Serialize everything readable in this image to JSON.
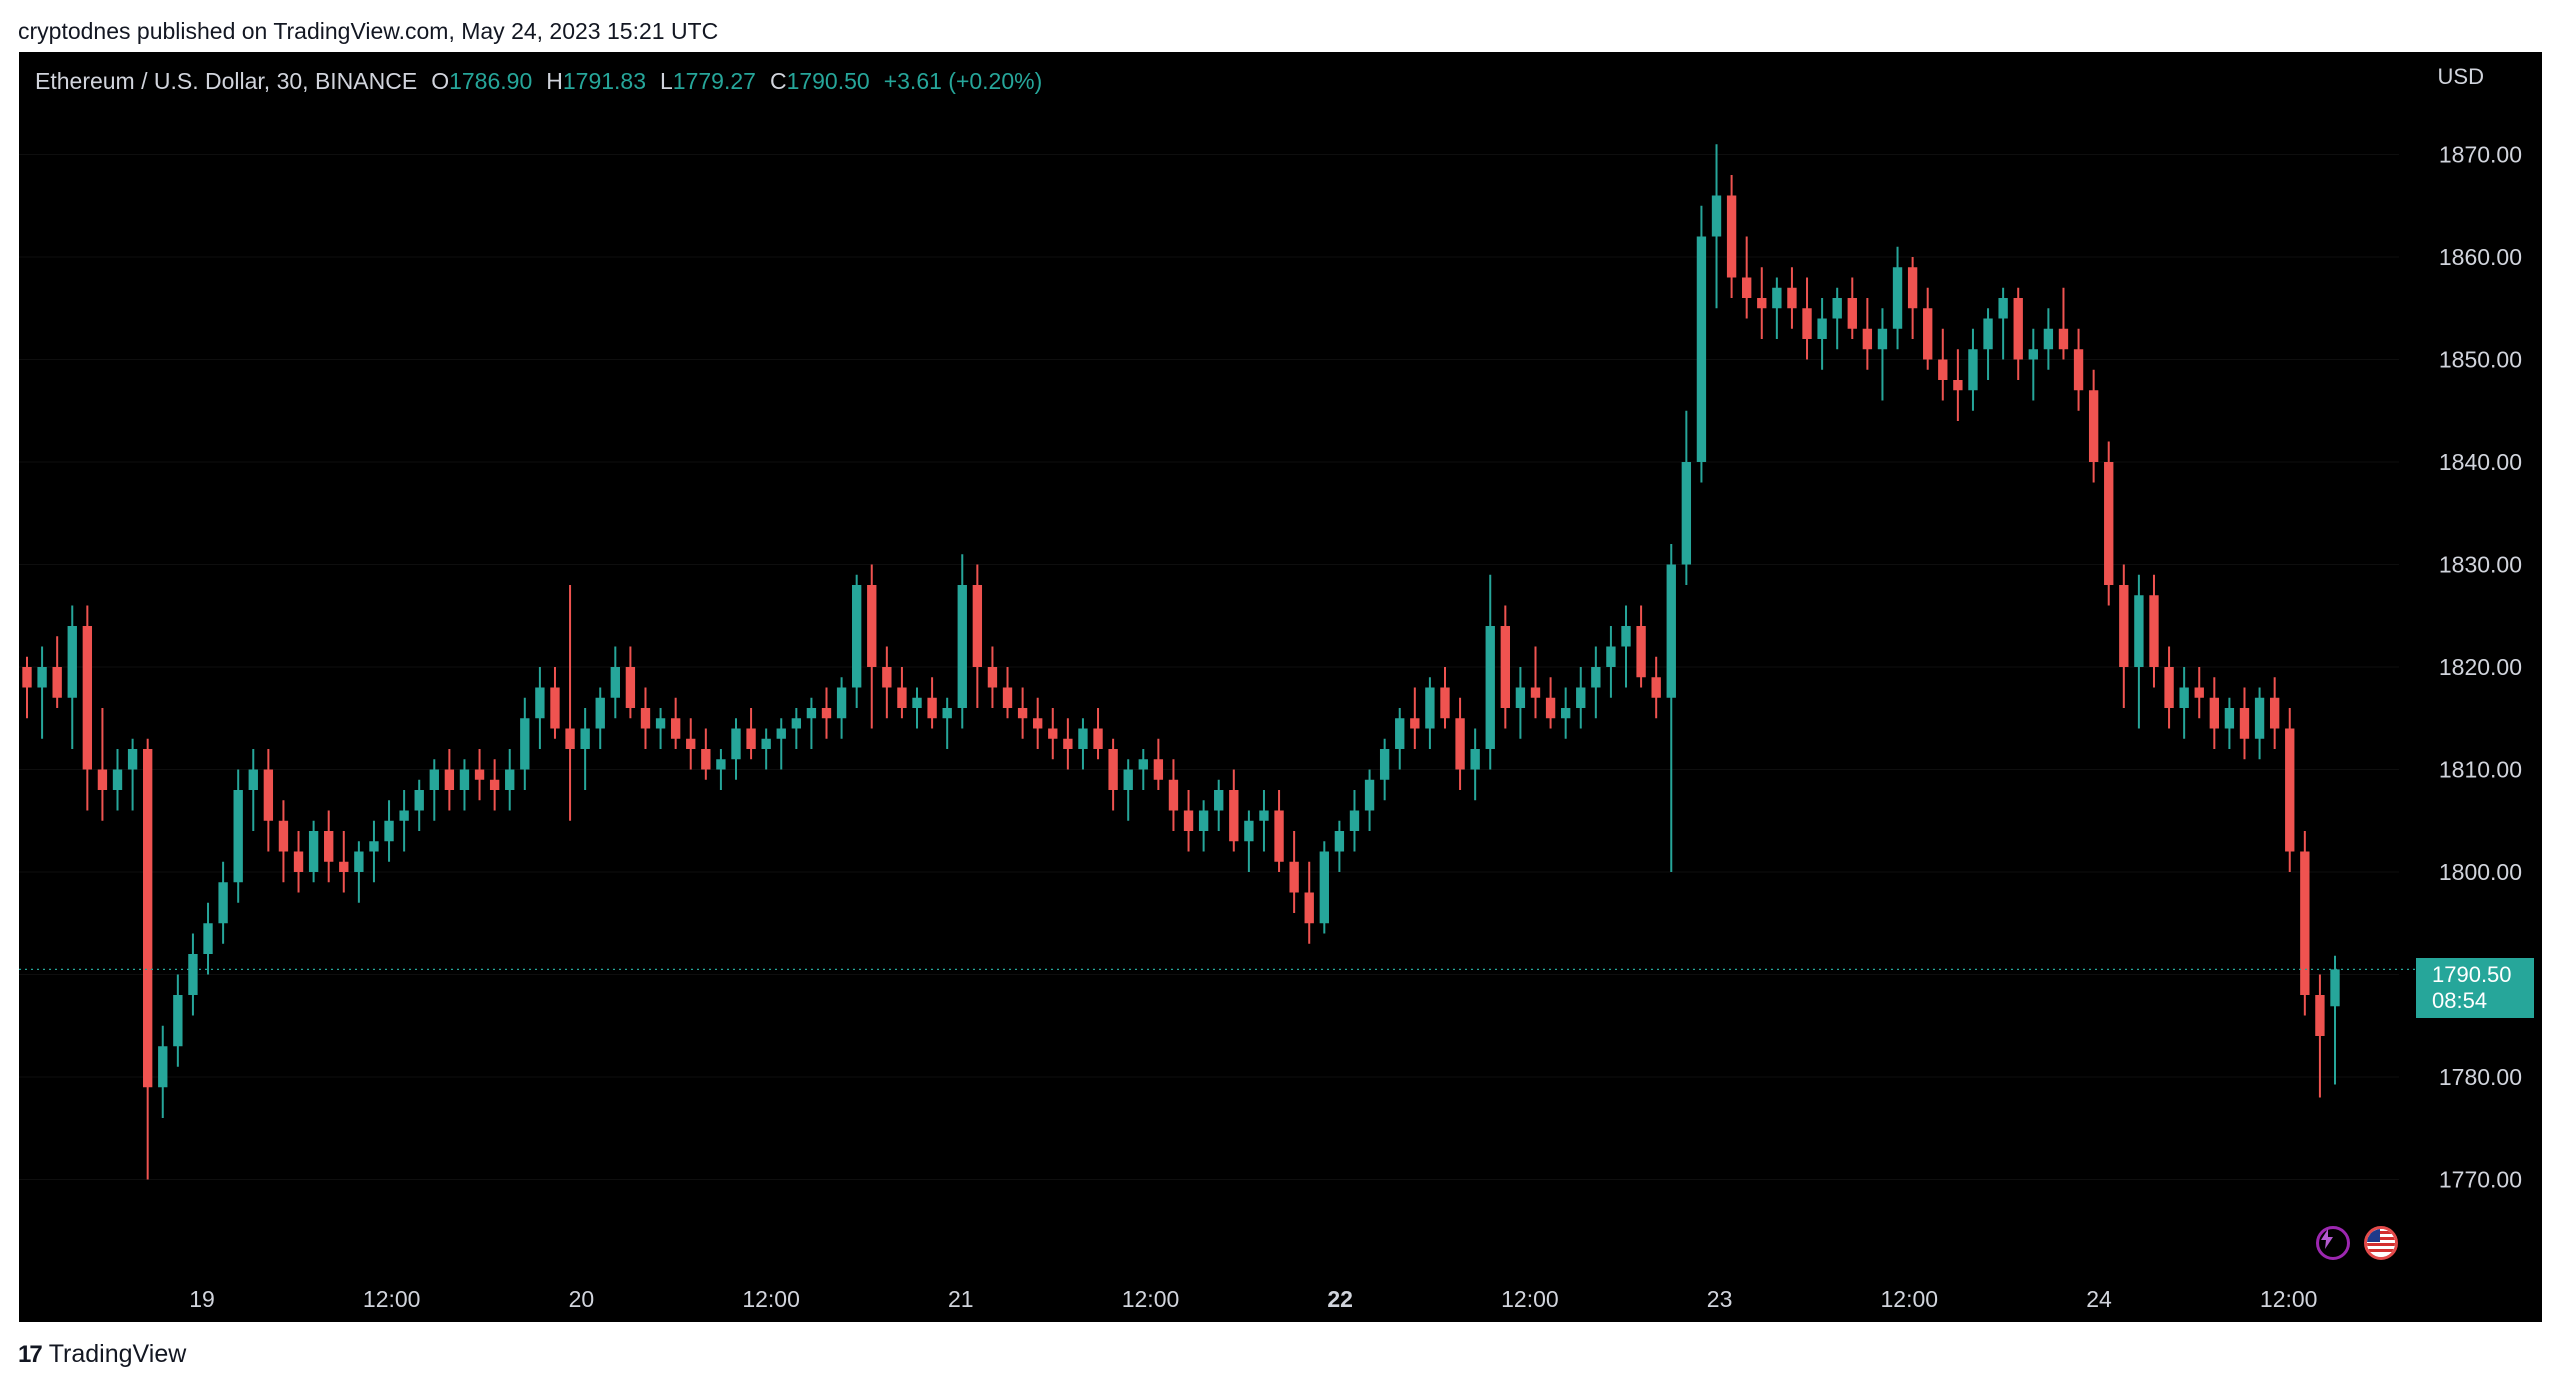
{
  "header": {
    "publish_line": "cryptodnes published on TradingView.com, May 24, 2023 15:21 UTC"
  },
  "legend": {
    "symbol": "Ethereum / U.S. Dollar, 30, BINANCE",
    "open_label": "O",
    "open_value": "1786.90",
    "high_label": "H",
    "high_value": "1791.83",
    "low_label": "L",
    "low_value": "1779.27",
    "close_label": "C",
    "close_value": "1790.50",
    "change": "+3.61 (+0.20%)"
  },
  "currency": "USD",
  "last_price": {
    "price": "1790.50",
    "countdown": "08:54"
  },
  "footer": {
    "brand": "TradingView",
    "logo_glyph": "17"
  },
  "icons": {
    "lightning": "lightning-icon",
    "flag": "us-flag-icon"
  },
  "colors": {
    "up": "#26a69a",
    "down": "#ef5350",
    "background": "#000000",
    "text": "#d1d4dc"
  },
  "chart_data": {
    "type": "candlestick",
    "interval": "30",
    "currency": "USD",
    "ylim": [
      1760,
      1880
    ],
    "y_ticks": [
      1770,
      1780,
      1790,
      1800,
      1810,
      1820,
      1830,
      1840,
      1850,
      1860,
      1870
    ],
    "y_tick_labels": [
      "1770.00",
      "1780.00",
      "1800.00",
      "1810.00",
      "1820.00",
      "1830.00",
      "1840.00",
      "1850.00",
      "1860.00",
      "1870.00"
    ],
    "x_ticks": [
      {
        "label": "19",
        "bold": false
      },
      {
        "label": "12:00",
        "bold": false
      },
      {
        "label": "20",
        "bold": false
      },
      {
        "label": "12:00",
        "bold": false
      },
      {
        "label": "21",
        "bold": false
      },
      {
        "label": "12:00",
        "bold": false
      },
      {
        "label": "22",
        "bold": true
      },
      {
        "label": "12:00",
        "bold": false
      },
      {
        "label": "23",
        "bold": false
      },
      {
        "label": "12:00",
        "bold": false
      },
      {
        "label": "24",
        "bold": false
      },
      {
        "label": "12:00",
        "bold": false
      }
    ],
    "first_bar_time": "2023-05-18 15:00",
    "last_price": 1790.5,
    "ohlc": [
      [
        1820,
        1821,
        1815,
        1818
      ],
      [
        1818,
        1822,
        1813,
        1820
      ],
      [
        1820,
        1823,
        1816,
        1817
      ],
      [
        1817,
        1826,
        1812,
        1824
      ],
      [
        1824,
        1826,
        1806,
        1810
      ],
      [
        1810,
        1816,
        1805,
        1808
      ],
      [
        1808,
        1812,
        1806,
        1810
      ],
      [
        1810,
        1813,
        1806,
        1812
      ],
      [
        1812,
        1813,
        1770,
        1779
      ],
      [
        1779,
        1785,
        1776,
        1783
      ],
      [
        1783,
        1790,
        1781,
        1788
      ],
      [
        1788,
        1794,
        1786,
        1792
      ],
      [
        1792,
        1797,
        1790,
        1795
      ],
      [
        1795,
        1801,
        1793,
        1799
      ],
      [
        1799,
        1810,
        1797,
        1808
      ],
      [
        1808,
        1812,
        1804,
        1810
      ],
      [
        1810,
        1812,
        1802,
        1805
      ],
      [
        1805,
        1807,
        1799,
        1802
      ],
      [
        1802,
        1804,
        1798,
        1800
      ],
      [
        1800,
        1805,
        1799,
        1804
      ],
      [
        1804,
        1806,
        1799,
        1801
      ],
      [
        1801,
        1804,
        1798,
        1800
      ],
      [
        1800,
        1803,
        1797,
        1802
      ],
      [
        1802,
        1805,
        1799,
        1803
      ],
      [
        1803,
        1807,
        1801,
        1805
      ],
      [
        1805,
        1808,
        1802,
        1806
      ],
      [
        1806,
        1809,
        1804,
        1808
      ],
      [
        1808,
        1811,
        1805,
        1810
      ],
      [
        1810,
        1812,
        1806,
        1808
      ],
      [
        1808,
        1811,
        1806,
        1810
      ],
      [
        1810,
        1812,
        1807,
        1809
      ],
      [
        1809,
        1811,
        1806,
        1808
      ],
      [
        1808,
        1812,
        1806,
        1810
      ],
      [
        1810,
        1817,
        1808,
        1815
      ],
      [
        1815,
        1820,
        1812,
        1818
      ],
      [
        1818,
        1820,
        1813,
        1814
      ],
      [
        1814,
        1828,
        1805,
        1812
      ],
      [
        1812,
        1816,
        1808,
        1814
      ],
      [
        1814,
        1818,
        1812,
        1817
      ],
      [
        1817,
        1822,
        1815,
        1820
      ],
      [
        1820,
        1822,
        1815,
        1816
      ],
      [
        1816,
        1818,
        1812,
        1814
      ],
      [
        1814,
        1816,
        1812,
        1815
      ],
      [
        1815,
        1817,
        1812,
        1813
      ],
      [
        1813,
        1815,
        1810,
        1812
      ],
      [
        1812,
        1814,
        1809,
        1810
      ],
      [
        1810,
        1812,
        1808,
        1811
      ],
      [
        1811,
        1815,
        1809,
        1814
      ],
      [
        1814,
        1816,
        1811,
        1812
      ],
      [
        1812,
        1814,
        1810,
        1813
      ],
      [
        1813,
        1815,
        1810,
        1814
      ],
      [
        1814,
        1816,
        1812,
        1815
      ],
      [
        1815,
        1817,
        1812,
        1816
      ],
      [
        1816,
        1818,
        1813,
        1815
      ],
      [
        1815,
        1819,
        1813,
        1818
      ],
      [
        1818,
        1829,
        1816,
        1828
      ],
      [
        1828,
        1830,
        1814,
        1820
      ],
      [
        1820,
        1822,
        1815,
        1818
      ],
      [
        1818,
        1820,
        1815,
        1816
      ],
      [
        1816,
        1818,
        1814,
        1817
      ],
      [
        1817,
        1819,
        1814,
        1815
      ],
      [
        1815,
        1817,
        1812,
        1816
      ],
      [
        1816,
        1831,
        1814,
        1828
      ],
      [
        1828,
        1830,
        1816,
        1820
      ],
      [
        1820,
        1822,
        1816,
        1818
      ],
      [
        1818,
        1820,
        1815,
        1816
      ],
      [
        1816,
        1818,
        1813,
        1815
      ],
      [
        1815,
        1817,
        1812,
        1814
      ],
      [
        1814,
        1816,
        1811,
        1813
      ],
      [
        1813,
        1815,
        1810,
        1812
      ],
      [
        1812,
        1815,
        1810,
        1814
      ],
      [
        1814,
        1816,
        1811,
        1812
      ],
      [
        1812,
        1813,
        1806,
        1808
      ],
      [
        1808,
        1811,
        1805,
        1810
      ],
      [
        1810,
        1812,
        1808,
        1811
      ],
      [
        1811,
        1813,
        1808,
        1809
      ],
      [
        1809,
        1811,
        1804,
        1806
      ],
      [
        1806,
        1808,
        1802,
        1804
      ],
      [
        1804,
        1807,
        1802,
        1806
      ],
      [
        1806,
        1809,
        1804,
        1808
      ],
      [
        1808,
        1810,
        1802,
        1803
      ],
      [
        1803,
        1806,
        1800,
        1805
      ],
      [
        1805,
        1808,
        1802,
        1806
      ],
      [
        1806,
        1808,
        1800,
        1801
      ],
      [
        1801,
        1804,
        1796,
        1798
      ],
      [
        1798,
        1801,
        1793,
        1795
      ],
      [
        1795,
        1803,
        1794,
        1802
      ],
      [
        1802,
        1805,
        1800,
        1804
      ],
      [
        1804,
        1808,
        1802,
        1806
      ],
      [
        1806,
        1810,
        1804,
        1809
      ],
      [
        1809,
        1813,
        1807,
        1812
      ],
      [
        1812,
        1816,
        1810,
        1815
      ],
      [
        1815,
        1818,
        1812,
        1814
      ],
      [
        1814,
        1819,
        1812,
        1818
      ],
      [
        1818,
        1820,
        1814,
        1815
      ],
      [
        1815,
        1817,
        1808,
        1810
      ],
      [
        1810,
        1814,
        1807,
        1812
      ],
      [
        1812,
        1829,
        1810,
        1824
      ],
      [
        1824,
        1826,
        1814,
        1816
      ],
      [
        1816,
        1820,
        1813,
        1818
      ],
      [
        1818,
        1822,
        1815,
        1817
      ],
      [
        1817,
        1819,
        1814,
        1815
      ],
      [
        1815,
        1818,
        1813,
        1816
      ],
      [
        1816,
        1820,
        1814,
        1818
      ],
      [
        1818,
        1822,
        1815,
        1820
      ],
      [
        1820,
        1824,
        1817,
        1822
      ],
      [
        1822,
        1826,
        1818,
        1824
      ],
      [
        1824,
        1826,
        1818,
        1819
      ],
      [
        1819,
        1821,
        1815,
        1817
      ],
      [
        1817,
        1832,
        1800,
        1830
      ],
      [
        1830,
        1845,
        1828,
        1840
      ],
      [
        1840,
        1865,
        1838,
        1862
      ],
      [
        1862,
        1871,
        1855,
        1866
      ],
      [
        1866,
        1868,
        1856,
        1858
      ],
      [
        1858,
        1862,
        1854,
        1856
      ],
      [
        1856,
        1859,
        1852,
        1855
      ],
      [
        1855,
        1858,
        1852,
        1857
      ],
      [
        1857,
        1859,
        1853,
        1855
      ],
      [
        1855,
        1858,
        1850,
        1852
      ],
      [
        1852,
        1856,
        1849,
        1854
      ],
      [
        1854,
        1857,
        1851,
        1856
      ],
      [
        1856,
        1858,
        1852,
        1853
      ],
      [
        1853,
        1856,
        1849,
        1851
      ],
      [
        1851,
        1855,
        1846,
        1853
      ],
      [
        1853,
        1861,
        1851,
        1859
      ],
      [
        1859,
        1860,
        1852,
        1855
      ],
      [
        1855,
        1857,
        1849,
        1850
      ],
      [
        1850,
        1853,
        1846,
        1848
      ],
      [
        1848,
        1851,
        1844,
        1847
      ],
      [
        1847,
        1853,
        1845,
        1851
      ],
      [
        1851,
        1855,
        1848,
        1854
      ],
      [
        1854,
        1857,
        1850,
        1856
      ],
      [
        1856,
        1857,
        1848,
        1850
      ],
      [
        1850,
        1853,
        1846,
        1851
      ],
      [
        1851,
        1855,
        1849,
        1853
      ],
      [
        1853,
        1857,
        1850,
        1851
      ],
      [
        1851,
        1853,
        1845,
        1847
      ],
      [
        1847,
        1849,
        1838,
        1840
      ],
      [
        1840,
        1842,
        1826,
        1828
      ],
      [
        1828,
        1830,
        1816,
        1820
      ],
      [
        1820,
        1829,
        1814,
        1827
      ],
      [
        1827,
        1829,
        1818,
        1820
      ],
      [
        1820,
        1822,
        1814,
        1816
      ],
      [
        1816,
        1820,
        1813,
        1818
      ],
      [
        1818,
        1820,
        1815,
        1817
      ],
      [
        1817,
        1819,
        1812,
        1814
      ],
      [
        1814,
        1817,
        1812,
        1816
      ],
      [
        1816,
        1818,
        1811,
        1813
      ],
      [
        1813,
        1818,
        1811,
        1817
      ],
      [
        1817,
        1819,
        1812,
        1814
      ],
      [
        1814,
        1816,
        1800,
        1802
      ],
      [
        1802,
        1804,
        1786,
        1788
      ],
      [
        1788,
        1790,
        1778,
        1784
      ],
      [
        1786.9,
        1791.83,
        1779.27,
        1790.5
      ]
    ]
  }
}
